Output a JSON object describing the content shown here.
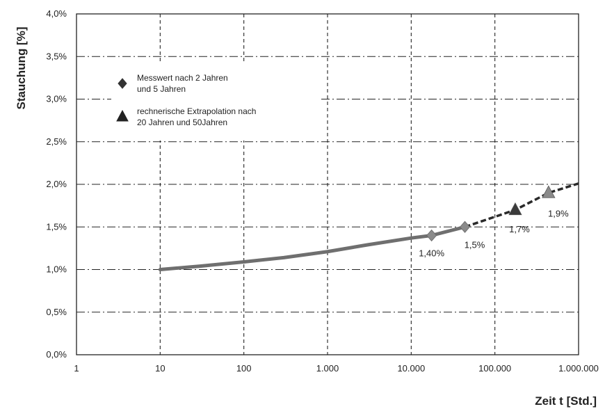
{
  "chart_data": {
    "type": "line",
    "xlabel": "Zeit t [Std.]",
    "ylabel": "Stauchung [%]",
    "x_scale": "log",
    "xlim": [
      1,
      1000000
    ],
    "ylim": [
      0,
      4.0
    ],
    "grid": true,
    "x_ticks": [
      1,
      10,
      100,
      1000,
      10000,
      100000,
      1000000
    ],
    "x_tick_labels": [
      "1",
      "10",
      "100",
      "1.000",
      "10.000",
      "100.000",
      "1.000.000"
    ],
    "y_ticks": [
      0,
      0.5,
      1.0,
      1.5,
      2.0,
      2.5,
      3.0,
      3.5,
      4.0
    ],
    "y_tick_labels": [
      "0,0%",
      "0,5%",
      "1,0%",
      "1,5%",
      "2,0%",
      "2,5%",
      "3,0%",
      "3,5%",
      "4,0%"
    ],
    "legend_position": "top-left",
    "series": [
      {
        "type": "line",
        "x": [
          10,
          30,
          100,
          300,
          1000,
          3000,
          10000,
          17520,
          43800
        ],
        "y": [
          1.0,
          1.04,
          1.09,
          1.14,
          1.21,
          1.29,
          1.37,
          1.4,
          1.5
        ]
      },
      {
        "type": "dashed-line",
        "x": [
          43800,
          175200,
          438000,
          1000000
        ],
        "y": [
          1.5,
          1.7,
          1.9,
          2.01
        ]
      },
      {
        "name": "Messwert nach 2 Jahren und 5 Jahren",
        "type": "marker-diamond",
        "x": [
          17520,
          43800
        ],
        "y": [
          1.4,
          1.5
        ],
        "labels": [
          "1,40%",
          "1,5%"
        ]
      },
      {
        "name": "rechnerische Extrapolation nach 20 Jahren und 50Jahren",
        "type": "marker-triangle",
        "x": [
          175200,
          438000
        ],
        "y": [
          1.7,
          1.9
        ],
        "labels": [
          "1,7%",
          "1,9%"
        ]
      }
    ],
    "legend": [
      {
        "marker": "diamond",
        "line1": "Messwert nach 2 Jahren",
        "line2": "und 5 Jahren"
      },
      {
        "marker": "triangle",
        "line1": "rechnerische Extrapolation nach",
        "line2": "20 Jahren und 50Jahren"
      }
    ],
    "colors": {
      "line": "#6f6f6f",
      "marker": "#8a8a8a",
      "marker_dark": "#3a3a3a",
      "grid": "#222222"
    }
  }
}
